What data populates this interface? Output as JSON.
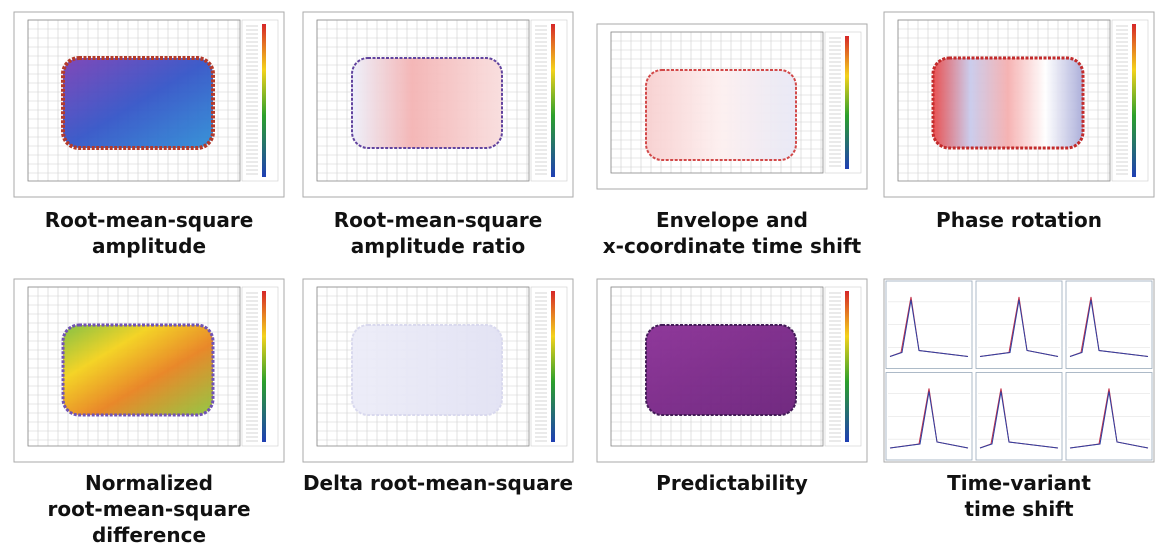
{
  "panels": [
    {
      "caption": [
        "Root-mean-square",
        "amplitude"
      ]
    },
    {
      "caption": [
        "Root-mean-square",
        "amplitude ratio"
      ]
    },
    {
      "caption": [
        "Envelope and",
        "x-coordinate time shift"
      ]
    },
    {
      "caption": [
        "Phase rotation"
      ]
    },
    {
      "caption": [
        "Normalized",
        "root-mean-square",
        "difference"
      ]
    },
    {
      "caption": [
        "Delta root-mean-square"
      ]
    },
    {
      "caption": [
        "Predictability"
      ]
    },
    {
      "caption": [
        "Time-variant",
        "time shift"
      ]
    }
  ]
}
